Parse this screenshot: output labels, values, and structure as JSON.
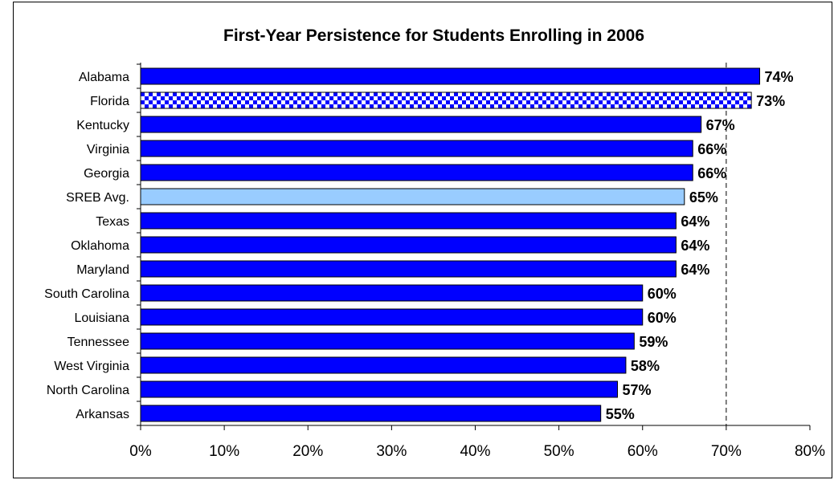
{
  "chart_data": {
    "type": "bar",
    "orientation": "horizontal",
    "title": "First-Year Persistence for Students Enrolling in 2006",
    "categories": [
      "Alabama",
      "Florida",
      "Kentucky",
      "Virginia",
      "Georgia",
      "SREB Avg.",
      "Texas",
      "Oklahoma",
      "Maryland",
      "South Carolina",
      "Louisiana",
      "Tennessee",
      "West Virginia",
      "North Carolina",
      "Arkansas"
    ],
    "values": [
      74,
      73,
      67,
      66,
      66,
      65,
      64,
      64,
      64,
      60,
      60,
      59,
      58,
      57,
      55
    ],
    "data_labels": [
      "74%",
      "73%",
      "67%",
      "66%",
      "66%",
      "65%",
      "64%",
      "64%",
      "64%",
      "60%",
      "60%",
      "59%",
      "58%",
      "57%",
      "55%"
    ],
    "x_ticks": [
      0,
      10,
      20,
      30,
      40,
      50,
      60,
      70,
      80
    ],
    "x_tick_labels": [
      "0%",
      "10%",
      "20%",
      "30%",
      "40%",
      "50%",
      "60%",
      "70%",
      "80%"
    ],
    "xlim": [
      0,
      80
    ],
    "reference_line": 70,
    "grid": false,
    "legend": "none",
    "colors": {
      "bar": "#0000FF",
      "highlight": "#99CCFF",
      "pattern_a": "#0000FF",
      "pattern_b": "#FFFFFF",
      "outline": "#000000"
    },
    "bar_styles": [
      "solid",
      "checkered",
      "solid",
      "solid",
      "solid",
      "light",
      "solid",
      "solid",
      "solid",
      "solid",
      "solid",
      "solid",
      "solid",
      "solid",
      "solid"
    ]
  }
}
